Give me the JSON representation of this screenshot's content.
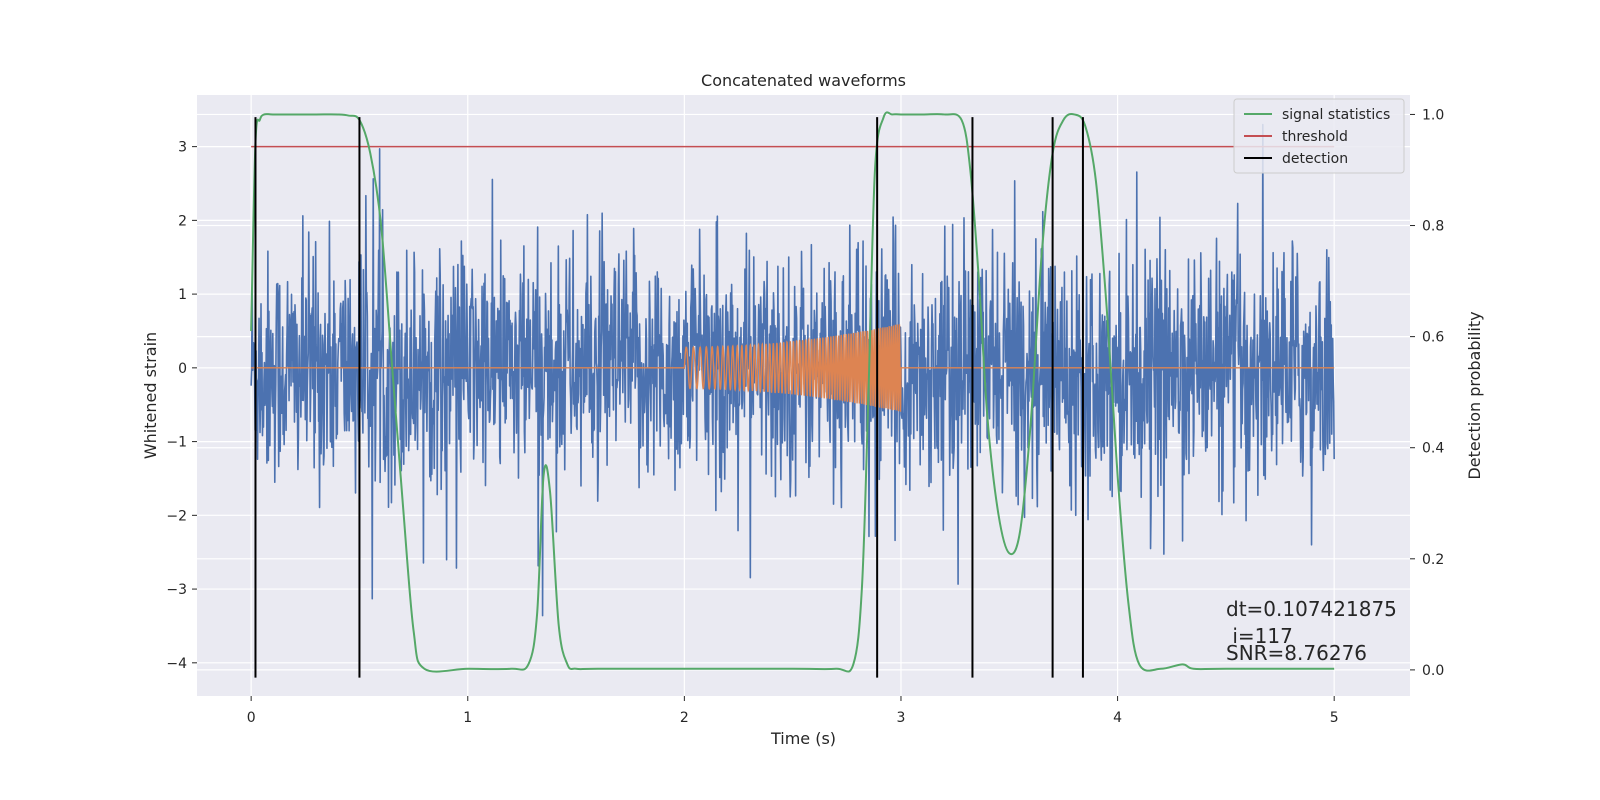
{
  "chart_data": {
    "type": "line",
    "title": "Concatenated waveforms",
    "xlabel": "Time (s)",
    "ylabel": "Whitened strain",
    "y2label": "Detection probability",
    "xlim": [
      -0.25,
      5.35
    ],
    "ylim": [
      -4.45,
      3.7
    ],
    "y2lim": [
      -0.047,
      1.035
    ],
    "xticks": [
      0,
      1,
      2,
      3,
      4,
      5
    ],
    "yticks": [
      -4,
      -3,
      -2,
      -1,
      0,
      1,
      2,
      3
    ],
    "y2ticks": [
      0.0,
      0.2,
      0.4,
      0.6,
      0.8,
      1.0
    ],
    "grid": true,
    "legend_position": "top-right",
    "colors": {
      "strain": "#4c72b0",
      "injected_signal": "#dd8452",
      "signal_statistics": "#55a868",
      "threshold": "#c44e52",
      "detection": "#000000",
      "plot_background": "#eaeaf2"
    },
    "series": [
      {
        "name": "signal statistics",
        "axis": "right",
        "style": "line",
        "x": [
          0.0,
          0.02,
          0.04,
          0.06,
          0.1,
          0.2,
          0.3,
          0.4,
          0.45,
          0.5,
          0.55,
          0.6,
          0.65,
          0.7,
          0.75,
          0.8,
          1.0,
          1.2,
          1.28,
          1.32,
          1.35,
          1.38,
          1.42,
          1.46,
          1.5,
          1.6,
          2.0,
          2.5,
          2.7,
          2.78,
          2.82,
          2.85,
          2.88,
          2.92,
          2.96,
          3.0,
          3.1,
          3.2,
          3.28,
          3.32,
          3.36,
          3.4,
          3.45,
          3.5,
          3.55,
          3.6,
          3.65,
          3.7,
          3.75,
          3.8,
          3.85,
          3.9,
          3.95,
          4.0,
          4.05,
          4.1,
          4.2,
          4.3,
          4.35,
          4.5,
          5.0
        ],
        "values": [
          0.61,
          0.95,
          0.99,
          1.0,
          1.0,
          1.0,
          1.0,
          1.0,
          0.998,
          0.99,
          0.93,
          0.8,
          0.55,
          0.3,
          0.07,
          0.002,
          0.002,
          0.002,
          0.01,
          0.1,
          0.35,
          0.32,
          0.08,
          0.01,
          0.002,
          0.002,
          0.002,
          0.002,
          0.002,
          0.01,
          0.15,
          0.5,
          0.9,
          0.995,
          1.0,
          1.0,
          1.0,
          1.0,
          0.99,
          0.9,
          0.7,
          0.45,
          0.28,
          0.21,
          0.25,
          0.45,
          0.75,
          0.93,
          0.99,
          1.0,
          0.98,
          0.88,
          0.65,
          0.35,
          0.12,
          0.01,
          0.002,
          0.01,
          0.002,
          0.002,
          0.002
        ]
      },
      {
        "name": "threshold",
        "axis": "left",
        "style": "line",
        "x": [
          0.0,
          5.0
        ],
        "values": [
          3.0,
          3.0
        ]
      },
      {
        "name": "detection",
        "axis": "left",
        "style": "vlines",
        "x": [
          0.02,
          0.5,
          2.89,
          3.33,
          3.7,
          3.84
        ],
        "ymin": -4.2,
        "ymax": 3.4
      },
      {
        "axis": "left",
        "style": "noise",
        "x_range": [
          0.0,
          5.0
        ],
        "amplitude_range": [
          -4.2,
          3.3
        ]
      },
      {
        "axis": "left",
        "style": "chirp",
        "x_range": [
          2.0,
          3.0
        ],
        "amplitude_start": 0.28,
        "amplitude_end": 0.6
      }
    ],
    "annotations": [
      "dt=0.107421875",
      " i=117",
      "SNR=8.76276"
    ]
  }
}
